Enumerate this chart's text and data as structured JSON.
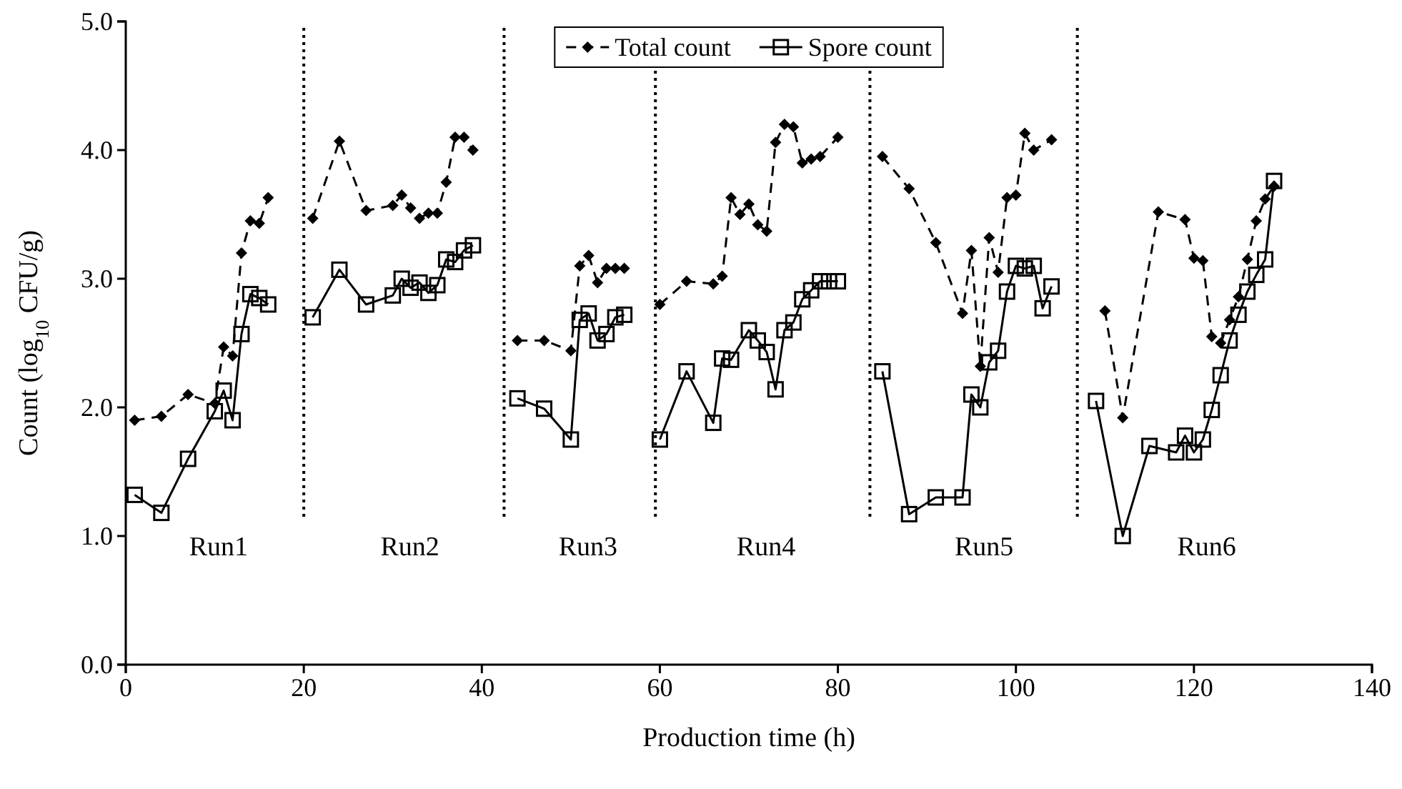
{
  "chart_data": {
    "type": "line",
    "xlabel": "Production time (h)",
    "ylabel": "Count (log$_{10}$ CFU/g)",
    "xlim": [
      0,
      140
    ],
    "xticks": [
      0,
      20,
      40,
      60,
      80,
      100,
      120,
      140
    ],
    "ylim": [
      0,
      5
    ],
    "yticks": [
      {
        "value": 0,
        "label": "0.0"
      },
      {
        "value": 1,
        "label": "1.0"
      },
      {
        "value": 2,
        "label": "2.0"
      },
      {
        "value": 3,
        "label": "3.0"
      },
      {
        "value": 4,
        "label": "4.0"
      },
      {
        "value": 5,
        "label": "5.0"
      }
    ],
    "grid": false,
    "legend": "top",
    "series": [
      {
        "name": "Total count",
        "color": "#000000",
        "marker": "diamond",
        "line_style": "dashed",
        "x": [
          1,
          4,
          7,
          10,
          11,
          12,
          13,
          14,
          15,
          16,
          17,
          21,
          24,
          27,
          30,
          31,
          32,
          33,
          34,
          35,
          36,
          37,
          38,
          39,
          40,
          44,
          47,
          50,
          51,
          52,
          53,
          54,
          55,
          56,
          57,
          60,
          63,
          66,
          67,
          68,
          69,
          70,
          71,
          72,
          73,
          74,
          75,
          76,
          77,
          78,
          80,
          82,
          85,
          88,
          91,
          94,
          95,
          96,
          97,
          98,
          99,
          100,
          101,
          102,
          104,
          106,
          110,
          112,
          116,
          119,
          120,
          121,
          122,
          123,
          124,
          125,
          126,
          127,
          128,
          129
        ],
        "values": [
          1.9,
          1.93,
          2.1,
          2.03,
          2.47,
          2.4,
          3.2,
          3.45,
          3.43,
          3.63,
          null,
          3.47,
          4.07,
          3.53,
          3.57,
          3.65,
          3.55,
          3.47,
          3.51,
          3.51,
          3.75,
          4.1,
          4.1,
          4.0,
          null,
          2.52,
          2.52,
          2.44,
          3.1,
          3.18,
          2.97,
          3.08,
          3.08,
          3.08,
          null,
          2.8,
          2.98,
          2.96,
          3.02,
          3.63,
          3.5,
          3.58,
          3.42,
          3.37,
          4.06,
          4.2,
          4.18,
          3.9,
          3.93,
          3.95,
          4.1,
          null,
          3.95,
          3.7,
          3.28,
          2.73,
          3.22,
          2.32,
          3.32,
          3.05,
          3.63,
          3.65,
          4.13,
          4.0,
          4.08,
          null,
          2.75,
          1.92,
          3.52,
          3.46,
          3.16,
          3.14,
          2.55,
          2.5,
          2.68,
          2.86,
          3.15,
          3.45,
          3.62,
          3.72
        ]
      },
      {
        "name": "Spore count",
        "color": "#000000",
        "marker": "square",
        "line_style": "solid",
        "x": [
          1,
          4,
          7,
          10,
          11,
          12,
          13,
          14,
          15,
          16,
          17,
          21,
          24,
          27,
          30,
          31,
          32,
          33,
          34,
          35,
          36,
          37,
          38,
          39,
          40,
          44,
          47,
          50,
          51,
          52,
          53,
          54,
          55,
          56,
          57,
          60,
          63,
          66,
          67,
          68,
          70,
          71,
          72,
          73,
          74,
          75,
          76,
          77,
          78,
          79,
          80,
          82,
          85,
          88,
          91,
          94,
          95,
          96,
          97,
          98,
          99,
          100,
          101,
          102,
          103,
          104,
          106,
          109,
          112,
          115,
          118,
          119,
          120,
          121,
          122,
          123,
          124,
          125,
          126,
          127,
          128,
          129
        ],
        "values": [
          1.32,
          1.18,
          1.6,
          1.97,
          2.13,
          1.9,
          2.57,
          2.88,
          2.85,
          2.8,
          null,
          2.7,
          3.07,
          2.8,
          2.87,
          3.0,
          2.93,
          2.97,
          2.89,
          2.95,
          3.15,
          3.13,
          3.22,
          3.26,
          null,
          2.07,
          1.99,
          1.75,
          2.68,
          2.73,
          2.52,
          2.57,
          2.7,
          2.72,
          null,
          1.75,
          2.28,
          1.88,
          2.38,
          2.37,
          2.6,
          2.52,
          2.43,
          2.14,
          2.6,
          2.66,
          2.84,
          2.91,
          2.98,
          2.98,
          2.98,
          null,
          2.28,
          1.17,
          1.3,
          1.3,
          2.1,
          2.0,
          2.35,
          2.44,
          2.9,
          3.1,
          3.08,
          3.1,
          2.77,
          2.94,
          null,
          2.05,
          1.0,
          1.7,
          1.65,
          1.78,
          1.65,
          1.75,
          1.98,
          2.25,
          2.52,
          2.72,
          2.9,
          3.03,
          3.15,
          3.76
        ]
      }
    ],
    "ref_lines": [
      {
        "axis": "x",
        "value": 20,
        "line_style": "dotted",
        "color": "#000000"
      },
      {
        "axis": "x",
        "value": 42.5,
        "line_style": "dotted",
        "color": "#000000"
      },
      {
        "axis": "x",
        "value": 59.5,
        "line_style": "dotted",
        "color": "#000000"
      },
      {
        "axis": "x",
        "value": 83.6,
        "line_style": "dotted",
        "color": "#000000"
      },
      {
        "axis": "x",
        "value": 106.9,
        "line_style": "dotted",
        "color": "#000000"
      }
    ],
    "annotations": [
      "Run1",
      "Run2",
      "Run3",
      "Run4",
      "Run5",
      "Run6"
    ]
  }
}
